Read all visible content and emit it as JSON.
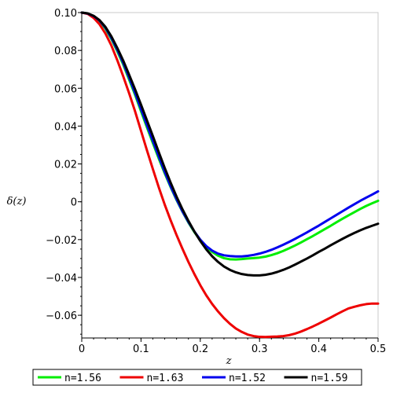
{
  "chart_data": {
    "type": "line",
    "title": "",
    "xlabel": "z",
    "ylabel": "δ(z)",
    "xlim": [
      0,
      0.5
    ],
    "ylim": [
      -0.072,
      0.1
    ],
    "x_ticks": [
      "0",
      "0.1",
      "0.2",
      "0.3",
      "0.4",
      "0.5"
    ],
    "y_ticks": [
      "0.10",
      "0.08",
      "0.06",
      "0.04",
      "0.02",
      "0",
      "−0.02",
      "−0.04",
      "−0.06"
    ],
    "grid": false,
    "legend_position": "bottom",
    "series": [
      {
        "name": "n=1.56",
        "color": "#00ee00",
        "points": [
          [
            0,
            0.1
          ],
          [
            0.01,
            0.0995
          ],
          [
            0.02,
            0.098
          ],
          [
            0.03,
            0.0955
          ],
          [
            0.04,
            0.0915
          ],
          [
            0.05,
            0.086
          ],
          [
            0.06,
            0.0795
          ],
          [
            0.07,
            0.0725
          ],
          [
            0.08,
            0.0645
          ],
          [
            0.09,
            0.0565
          ],
          [
            0.1,
            0.0478
          ],
          [
            0.11,
            0.0393
          ],
          [
            0.12,
            0.031
          ],
          [
            0.13,
            0.0228
          ],
          [
            0.14,
            0.015
          ],
          [
            0.15,
            0.0077
          ],
          [
            0.16,
            0.0009
          ],
          [
            0.17,
            -0.0053
          ],
          [
            0.18,
            -0.011
          ],
          [
            0.19,
            -0.016
          ],
          [
            0.2,
            -0.0203
          ],
          [
            0.21,
            -0.0238
          ],
          [
            0.22,
            -0.0265
          ],
          [
            0.23,
            -0.0285
          ],
          [
            0.24,
            -0.0298
          ],
          [
            0.25,
            -0.0304
          ],
          [
            0.26,
            -0.0305
          ],
          [
            0.27,
            -0.0303
          ],
          [
            0.28,
            -0.03
          ],
          [
            0.29,
            -0.0298
          ],
          [
            0.3,
            -0.0295
          ],
          [
            0.31,
            -0.029
          ],
          [
            0.32,
            -0.0282
          ],
          [
            0.33,
            -0.0272
          ],
          [
            0.34,
            -0.026
          ],
          [
            0.35,
            -0.0246
          ],
          [
            0.36,
            -0.0231
          ],
          [
            0.37,
            -0.0215
          ],
          [
            0.38,
            -0.0198
          ],
          [
            0.39,
            -0.0181
          ],
          [
            0.4,
            -0.0163
          ],
          [
            0.41,
            -0.0145
          ],
          [
            0.42,
            -0.0127
          ],
          [
            0.43,
            -0.0108
          ],
          [
            0.44,
            -0.009
          ],
          [
            0.45,
            -0.0072
          ],
          [
            0.46,
            -0.0055
          ],
          [
            0.47,
            -0.0038
          ],
          [
            0.48,
            -0.0022
          ],
          [
            0.49,
            -0.0008
          ],
          [
            0.5,
            0.0005
          ]
        ]
      },
      {
        "name": "n=1.63",
        "color": "#ee0000",
        "points": [
          [
            0,
            0.1
          ],
          [
            0.01,
            0.0993
          ],
          [
            0.02,
            0.0972
          ],
          [
            0.03,
            0.0938
          ],
          [
            0.04,
            0.0889
          ],
          [
            0.05,
            0.0826
          ],
          [
            0.06,
            0.0748
          ],
          [
            0.07,
            0.0663
          ],
          [
            0.08,
            0.0573
          ],
          [
            0.09,
            0.0478
          ],
          [
            0.1,
            0.0375
          ],
          [
            0.11,
            0.0272
          ],
          [
            0.12,
            0.0173
          ],
          [
            0.13,
            0.0076
          ],
          [
            0.14,
            -0.0015
          ],
          [
            0.15,
            -0.0098
          ],
          [
            0.16,
            -0.0176
          ],
          [
            0.17,
            -0.0249
          ],
          [
            0.18,
            -0.0318
          ],
          [
            0.19,
            -0.0382
          ],
          [
            0.2,
            -0.0441
          ],
          [
            0.21,
            -0.0494
          ],
          [
            0.22,
            -0.054
          ],
          [
            0.23,
            -0.058
          ],
          [
            0.24,
            -0.0615
          ],
          [
            0.25,
            -0.0645
          ],
          [
            0.26,
            -0.067
          ],
          [
            0.27,
            -0.0688
          ],
          [
            0.28,
            -0.0702
          ],
          [
            0.29,
            -0.071
          ],
          [
            0.3,
            -0.0714
          ],
          [
            0.31,
            -0.0715
          ],
          [
            0.32,
            -0.0713
          ],
          [
            0.33,
            -0.0712
          ],
          [
            0.34,
            -0.071
          ],
          [
            0.35,
            -0.0705
          ],
          [
            0.36,
            -0.0697
          ],
          [
            0.37,
            -0.0686
          ],
          [
            0.38,
            -0.0673
          ],
          [
            0.39,
            -0.0659
          ],
          [
            0.4,
            -0.0644
          ],
          [
            0.41,
            -0.0628
          ],
          [
            0.42,
            -0.0612
          ],
          [
            0.43,
            -0.0595
          ],
          [
            0.44,
            -0.0579
          ],
          [
            0.45,
            -0.0564
          ],
          [
            0.46,
            -0.0555
          ],
          [
            0.47,
            -0.0547
          ],
          [
            0.48,
            -0.0541
          ],
          [
            0.49,
            -0.0538
          ],
          [
            0.5,
            -0.0538
          ]
        ]
      },
      {
        "name": "n=1.52",
        "color": "#0000ee",
        "points": [
          [
            0,
            0.1
          ],
          [
            0.01,
            0.0995
          ],
          [
            0.02,
            0.0982
          ],
          [
            0.03,
            0.0958
          ],
          [
            0.04,
            0.092
          ],
          [
            0.05,
            0.0866
          ],
          [
            0.06,
            0.0803
          ],
          [
            0.07,
            0.0734
          ],
          [
            0.08,
            0.0656
          ],
          [
            0.09,
            0.0575
          ],
          [
            0.1,
            0.049
          ],
          [
            0.11,
            0.0405
          ],
          [
            0.12,
            0.0322
          ],
          [
            0.13,
            0.0239
          ],
          [
            0.14,
            0.0158
          ],
          [
            0.15,
            0.0082
          ],
          [
            0.16,
            0.0013
          ],
          [
            0.17,
            -0.0051
          ],
          [
            0.18,
            -0.0107
          ],
          [
            0.19,
            -0.0157
          ],
          [
            0.2,
            -0.02
          ],
          [
            0.21,
            -0.0234
          ],
          [
            0.22,
            -0.0258
          ],
          [
            0.23,
            -0.0274
          ],
          [
            0.24,
            -0.0283
          ],
          [
            0.25,
            -0.0287
          ],
          [
            0.26,
            -0.0289
          ],
          [
            0.27,
            -0.0289
          ],
          [
            0.28,
            -0.0286
          ],
          [
            0.29,
            -0.0281
          ],
          [
            0.3,
            -0.0274
          ],
          [
            0.31,
            -0.0265
          ],
          [
            0.32,
            -0.0254
          ],
          [
            0.33,
            -0.0241
          ],
          [
            0.34,
            -0.0227
          ],
          [
            0.35,
            -0.0212
          ],
          [
            0.36,
            -0.0196
          ],
          [
            0.37,
            -0.0179
          ],
          [
            0.38,
            -0.0162
          ],
          [
            0.39,
            -0.0144
          ],
          [
            0.4,
            -0.0126
          ],
          [
            0.41,
            -0.0107
          ],
          [
            0.42,
            -0.0088
          ],
          [
            0.43,
            -0.0069
          ],
          [
            0.44,
            -0.005
          ],
          [
            0.45,
            -0.0031
          ],
          [
            0.46,
            -0.0013
          ],
          [
            0.47,
            0.0005
          ],
          [
            0.48,
            0.0022
          ],
          [
            0.49,
            0.0038
          ],
          [
            0.5,
            0.0055
          ]
        ]
      },
      {
        "name": "n=1.59",
        "color": "#000000",
        "points": [
          [
            0,
            0.1
          ],
          [
            0.01,
            0.0996
          ],
          [
            0.02,
            0.0983
          ],
          [
            0.03,
            0.096
          ],
          [
            0.04,
            0.0924
          ],
          [
            0.05,
            0.0874
          ],
          [
            0.06,
            0.0813
          ],
          [
            0.07,
            0.0746
          ],
          [
            0.08,
            0.0671
          ],
          [
            0.09,
            0.0594
          ],
          [
            0.1,
            0.0513
          ],
          [
            0.11,
            0.043
          ],
          [
            0.12,
            0.0347
          ],
          [
            0.13,
            0.0262
          ],
          [
            0.14,
            0.0179
          ],
          [
            0.15,
            0.0101
          ],
          [
            0.16,
            0.0027
          ],
          [
            0.17,
            -0.004
          ],
          [
            0.18,
            -0.0101
          ],
          [
            0.19,
            -0.0157
          ],
          [
            0.2,
            -0.0207
          ],
          [
            0.21,
            -0.0251
          ],
          [
            0.22,
            -0.0288
          ],
          [
            0.23,
            -0.0318
          ],
          [
            0.24,
            -0.0342
          ],
          [
            0.25,
            -0.036
          ],
          [
            0.26,
            -0.0373
          ],
          [
            0.27,
            -0.0382
          ],
          [
            0.28,
            -0.0387
          ],
          [
            0.29,
            -0.0389
          ],
          [
            0.3,
            -0.0389
          ],
          [
            0.31,
            -0.0386
          ],
          [
            0.32,
            -0.038
          ],
          [
            0.33,
            -0.0371
          ],
          [
            0.34,
            -0.036
          ],
          [
            0.35,
            -0.0347
          ],
          [
            0.36,
            -0.0332
          ],
          [
            0.37,
            -0.0316
          ],
          [
            0.38,
            -0.03
          ],
          [
            0.39,
            -0.0283
          ],
          [
            0.4,
            -0.0265
          ],
          [
            0.41,
            -0.0248
          ],
          [
            0.42,
            -0.023
          ],
          [
            0.43,
            -0.0213
          ],
          [
            0.44,
            -0.0196
          ],
          [
            0.45,
            -0.018
          ],
          [
            0.46,
            -0.0165
          ],
          [
            0.47,
            -0.0151
          ],
          [
            0.48,
            -0.0138
          ],
          [
            0.49,
            -0.0127
          ],
          [
            0.5,
            -0.0116
          ]
        ]
      }
    ]
  }
}
